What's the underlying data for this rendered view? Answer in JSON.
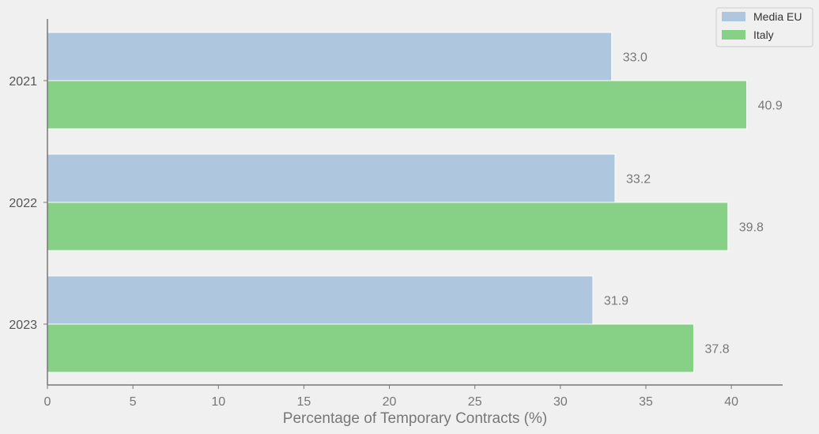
{
  "chart_data": {
    "type": "bar",
    "orientation": "horizontal",
    "categories": [
      "2021",
      "2022",
      "2023"
    ],
    "series": [
      {
        "name": "Media EU",
        "values": [
          33.0,
          33.2,
          31.9
        ],
        "color": "#afc6df"
      },
      {
        "name": "Italy",
        "values": [
          40.9,
          39.8,
          37.8
        ],
        "color": "#86d186"
      }
    ],
    "data_labels": [
      [
        "33.0",
        "33.2",
        "31.9"
      ],
      [
        "40.9",
        "39.8",
        "37.8"
      ]
    ],
    "title": "",
    "xlabel": "Percentage of Temporary Contracts (%)",
    "ylabel": "",
    "xlim": [
      0,
      43
    ],
    "xticks": [
      0,
      5,
      10,
      15,
      20,
      25,
      30,
      35,
      40
    ],
    "grid": false,
    "legend_position": "top-right",
    "background": "#f0f0f0",
    "axis_color": "#777777"
  }
}
